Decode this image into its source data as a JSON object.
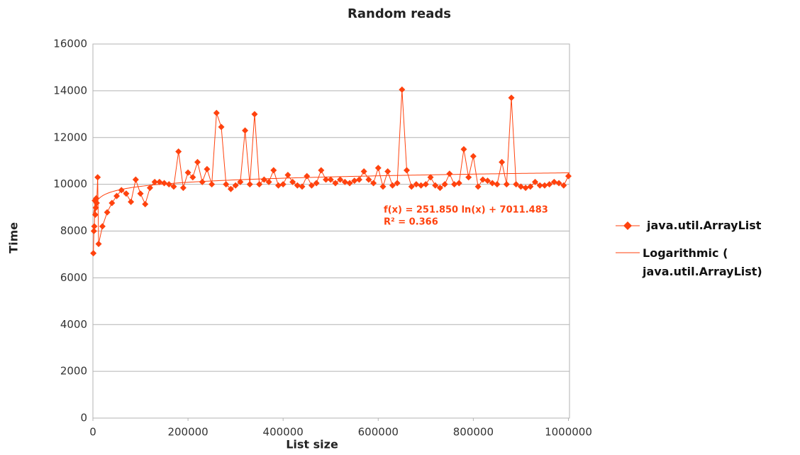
{
  "chart_data": {
    "type": "scatter-line",
    "title": "Random reads",
    "x_label": "List size",
    "y_label": "Time",
    "xlim": [
      0,
      1050000
    ],
    "xticks": [
      0,
      200000,
      400000,
      600000,
      800000,
      1000000
    ],
    "ylim": [
      0,
      16000
    ],
    "yticks": [
      0,
      2000,
      4000,
      6000,
      8000,
      10000,
      12000,
      14000,
      16000
    ],
    "grid": true,
    "legend": "right",
    "series": [
      {
        "name": "java.util.ArrayList",
        "color": "#ff420e",
        "x": [
          1000,
          2000,
          3000,
          4000,
          5000,
          6000,
          7000,
          8000,
          10000,
          12000,
          20000,
          30000,
          40000,
          50000,
          60000,
          70000,
          80000,
          90000,
          100000,
          110000,
          120000,
          130000,
          140000,
          150000,
          160000,
          170000,
          180000,
          190000,
          200000,
          210000,
          220000,
          230000,
          240000,
          250000,
          260000,
          270000,
          280000,
          290000,
          300000,
          310000,
          320000,
          330000,
          340000,
          350000,
          360000,
          370000,
          380000,
          390000,
          400000,
          410000,
          420000,
          430000,
          440000,
          450000,
          460000,
          470000,
          480000,
          490000,
          500000,
          510000,
          520000,
          530000,
          540000,
          550000,
          560000,
          570000,
          580000,
          590000,
          600000,
          610000,
          620000,
          630000,
          640000,
          650000,
          660000,
          670000,
          680000,
          690000,
          700000,
          710000,
          720000,
          730000,
          740000,
          750000,
          760000,
          770000,
          780000,
          790000,
          800000,
          810000,
          820000,
          830000,
          840000,
          850000,
          860000,
          870000,
          880000,
          890000,
          900000,
          910000,
          920000,
          930000,
          940000,
          950000,
          960000,
          970000,
          980000,
          990000,
          1000000
        ],
        "values": [
          7050,
          8000,
          8200,
          9300,
          8700,
          9000,
          9400,
          9200,
          10300,
          7450,
          8200,
          8800,
          9200,
          9500,
          9750,
          9600,
          9250,
          10200,
          9600,
          9150,
          9850,
          10100,
          10100,
          10050,
          10000,
          9900,
          11400,
          9850,
          10500,
          10300,
          10950,
          10100,
          10650,
          10000,
          13050,
          12450,
          10000,
          9800,
          9950,
          10100,
          12300,
          10000,
          13000,
          10000,
          10200,
          10100,
          10600,
          9950,
          10000,
          10400,
          10100,
          9950,
          9900,
          10350,
          9950,
          10050,
          10600,
          10200,
          10200,
          10050,
          10200,
          10100,
          10050,
          10150,
          10200,
          10550,
          10200,
          10050,
          10700,
          9900,
          10550,
          9950,
          10050,
          14050,
          10600,
          9900,
          10000,
          9950,
          10000,
          10300,
          9950,
          9850,
          10000,
          10450,
          10000,
          10050,
          11500,
          10300,
          11200,
          9900,
          10200,
          10150,
          10050,
          10000,
          10950,
          10000,
          13700,
          10000,
          9900,
          9850,
          9900,
          10100,
          9950,
          9950,
          10000,
          10100,
          10050,
          9950,
          10350
        ]
      }
    ],
    "trendline": {
      "name": "Logarithmic ( java.util.ArrayList)",
      "equation": "f(x) = 251.850 ln(x) + 7011.483",
      "r2_label": "R² = 0.366",
      "a": 251.85,
      "b": 7011.483
    }
  }
}
